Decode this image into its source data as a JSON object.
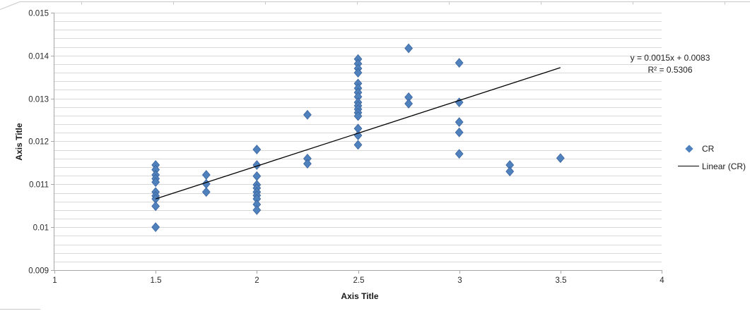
{
  "colors": {
    "marker": "#4F81BD",
    "marker_edge": "#39629C",
    "trendline": "#000000",
    "gridline": "#D9D9D9",
    "axis": "#A6A6A6",
    "tick_text": "#2b2b2b",
    "artifact": "#C8C8C8"
  },
  "chart_data": {
    "type": "scatter",
    "title": "",
    "xlabel": "Axis Title",
    "ylabel": "Axis Title",
    "xlim": [
      1,
      4
    ],
    "ylim": [
      0.009,
      0.015
    ],
    "x_tick_labels": [
      "1",
      "1.5",
      "2",
      "2.5",
      "3",
      "3.5",
      "4"
    ],
    "x_tick_values": [
      1,
      1.5,
      2,
      2.5,
      3,
      3.5,
      4
    ],
    "y_tick_labels": [
      "0.009",
      "0.01",
      "0.011",
      "0.012",
      "0.013",
      "0.014",
      "0.015"
    ],
    "y_tick_values": [
      0.009,
      0.01,
      0.011,
      0.012,
      0.013,
      0.014,
      0.015
    ],
    "minor_grid_step": 0.0002,
    "grid": true,
    "legend_position": "right",
    "series": [
      {
        "name": "CR",
        "marker": "diamond",
        "points": [
          [
            1.5,
            0.01145
          ],
          [
            1.5,
            0.01134
          ],
          [
            1.5,
            0.01122
          ],
          [
            1.5,
            0.01113
          ],
          [
            1.5,
            0.01105
          ],
          [
            1.5,
            0.01082
          ],
          [
            1.5,
            0.01073
          ],
          [
            1.5,
            0.01066
          ],
          [
            1.5,
            0.01049
          ],
          [
            1.5,
            0.01
          ],
          [
            1.75,
            0.01122
          ],
          [
            1.75,
            0.01101
          ],
          [
            1.75,
            0.01082
          ],
          [
            2,
            0.01181
          ],
          [
            2,
            0.01145
          ],
          [
            2,
            0.01119
          ],
          [
            2,
            0.01099
          ],
          [
            2,
            0.01091
          ],
          [
            2,
            0.01082
          ],
          [
            2,
            0.01074
          ],
          [
            2,
            0.01066
          ],
          [
            2,
            0.01053
          ],
          [
            2,
            0.0104
          ],
          [
            2.25,
            0.01262
          ],
          [
            2.25,
            0.0116
          ],
          [
            2.25,
            0.01148
          ],
          [
            2.5,
            0.01392
          ],
          [
            2.5,
            0.01381
          ],
          [
            2.5,
            0.0137
          ],
          [
            2.5,
            0.0136
          ],
          [
            2.5,
            0.01335
          ],
          [
            2.5,
            0.01324
          ],
          [
            2.5,
            0.01314
          ],
          [
            2.5,
            0.01304
          ],
          [
            2.5,
            0.01291
          ],
          [
            2.5,
            0.01283
          ],
          [
            2.5,
            0.01275
          ],
          [
            2.5,
            0.01267
          ],
          [
            2.5,
            0.01259
          ],
          [
            2.5,
            0.0123
          ],
          [
            2.5,
            0.01214
          ],
          [
            2.5,
            0.01192
          ],
          [
            2.75,
            0.01417
          ],
          [
            2.75,
            0.01303
          ],
          [
            2.75,
            0.01288
          ],
          [
            3,
            0.01383
          ],
          [
            3,
            0.01291
          ],
          [
            3,
            0.01245
          ],
          [
            3,
            0.01221
          ],
          [
            3,
            0.01171
          ],
          [
            3.25,
            0.01145
          ],
          [
            3.25,
            0.0113
          ],
          [
            3.5,
            0.01161
          ]
        ]
      }
    ],
    "trendline": {
      "label": "Linear (CR)",
      "x1": 1.5,
      "y1": 0.01066,
      "x2": 3.5,
      "y2": 0.01372,
      "equation": "y = 0.0015x + 0.0083",
      "r_squared": "R² = 0.5306"
    }
  }
}
